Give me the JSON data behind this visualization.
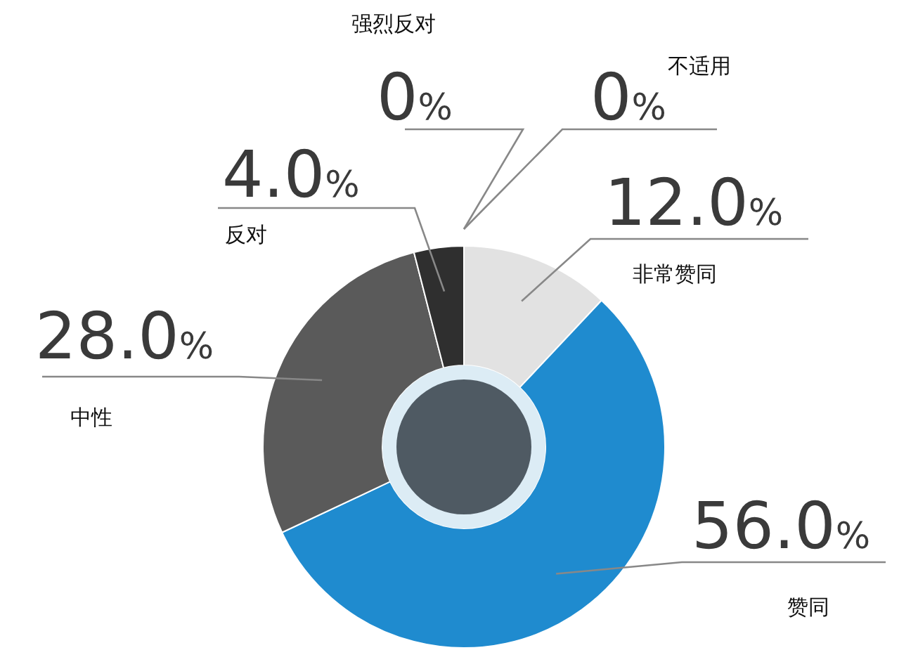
{
  "chart_data": {
    "type": "donut",
    "categories": [
      "不适用",
      "非常赞同",
      "赞同",
      "中性",
      "反对",
      "强烈反对"
    ],
    "values": [
      0,
      12.0,
      56.0,
      28.0,
      4.0,
      0
    ],
    "value_labels": [
      "0%",
      "12.0%",
      "56.0%",
      "28.0%",
      "4.0%",
      "0%"
    ],
    "colors": [
      null,
      "#e2e2e2",
      "#1f8bcf",
      "#5a5a5a",
      "#2f2f2f",
      null
    ]
  }
}
